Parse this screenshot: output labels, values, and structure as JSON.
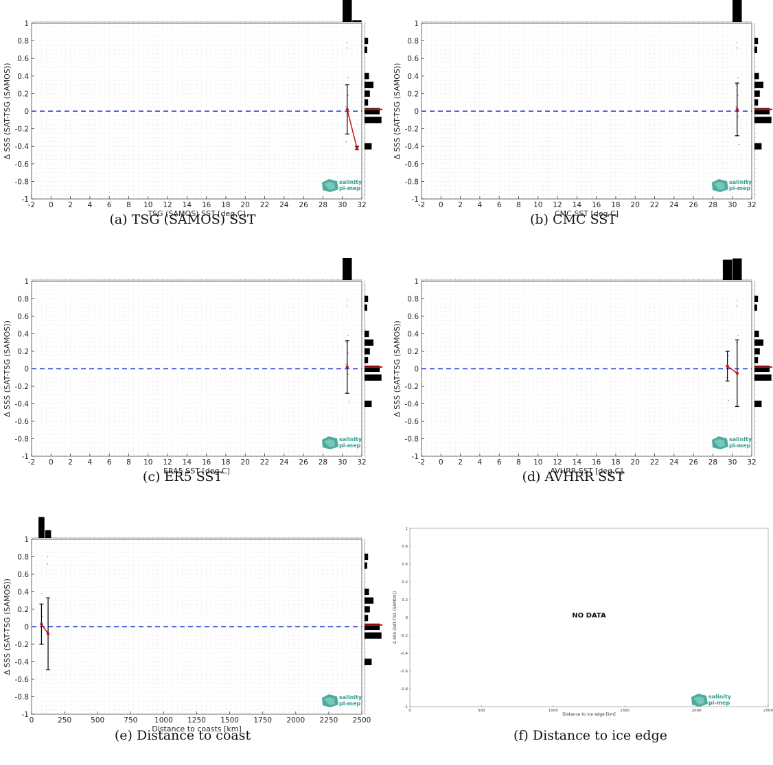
{
  "colors": {
    "zero_line": "#2233cc",
    "mean_line": "#cc1111",
    "bars": "#000000",
    "errorbar": "#000000",
    "logo": "#2e9c8c",
    "median_mark": "#cc1111"
  },
  "logo": {
    "line1": "salinity",
    "line2": "pi-mep",
    "icon": "salinity-logo-icon"
  },
  "chart_data": [
    {
      "id": "a",
      "type": "scatter",
      "caption": "(a) TSG (SAMOS) SST",
      "xlabel": "TSG (SAMOS) SST [deg C]",
      "ylabel": "Δ SSS (SAT-TSG (SAMOS))",
      "xlim": [
        -2,
        32
      ],
      "ylim": [
        -1,
        1
      ],
      "xticks": [
        -2,
        0,
        2,
        4,
        6,
        8,
        10,
        12,
        14,
        16,
        18,
        20,
        22,
        24,
        26,
        28,
        30,
        32
      ],
      "yticks": [
        -1,
        -0.8,
        -0.6,
        -0.4,
        -0.2,
        0,
        0.2,
        0.4,
        0.6,
        0.8,
        1
      ],
      "zero_line": 0,
      "mean_points": [
        {
          "x": 30.5,
          "y": 0.02,
          "err": 0.28
        },
        {
          "x": 31.5,
          "y": -0.42,
          "err": 0.02
        }
      ],
      "top_hist": [
        {
          "x": 30.5,
          "h": 1.0
        },
        {
          "x": 31.5,
          "h": 0.08
        }
      ],
      "right_hist": [
        {
          "y": 0.8,
          "w": 0.2
        },
        {
          "y": 0.7,
          "w": 0.15
        },
        {
          "y": 0.4,
          "w": 0.25
        },
        {
          "y": 0.3,
          "w": 0.5
        },
        {
          "y": 0.2,
          "w": 0.3
        },
        {
          "y": 0.1,
          "w": 0.2
        },
        {
          "y": 0.0,
          "w": 0.85
        },
        {
          "y": -0.1,
          "w": 0.95
        },
        {
          "y": -0.4,
          "w": 0.4
        }
      ],
      "median": 0.02,
      "scatter": [
        {
          "x": 30.5,
          "y": 0.78
        },
        {
          "x": 30.5,
          "y": 0.72
        },
        {
          "x": 30.6,
          "y": 0.38
        },
        {
          "x": 30.4,
          "y": 0.3
        },
        {
          "x": 30.6,
          "y": 0.18
        },
        {
          "x": 30.4,
          "y": 0.05
        },
        {
          "x": 30.6,
          "y": -0.06
        },
        {
          "x": 30.5,
          "y": -0.12
        },
        {
          "x": 30.4,
          "y": -0.35
        }
      ]
    },
    {
      "id": "b",
      "type": "scatter",
      "caption": "(b) CMC SST",
      "xlabel": "CMC SST [deg C]",
      "ylabel": "Δ SSS (SAT-TSG (SAMOS))",
      "xlim": [
        -2,
        32
      ],
      "ylim": [
        -1,
        1
      ],
      "xticks": [
        -2,
        0,
        2,
        4,
        6,
        8,
        10,
        12,
        14,
        16,
        18,
        20,
        22,
        24,
        26,
        28,
        30,
        32
      ],
      "yticks": [
        -1,
        -0.8,
        -0.6,
        -0.4,
        -0.2,
        0,
        0.2,
        0.4,
        0.6,
        0.8,
        1
      ],
      "zero_line": 0,
      "mean_points": [
        {
          "x": 30.5,
          "y": 0.02,
          "err": 0.3
        }
      ],
      "top_hist": [
        {
          "x": 30.5,
          "h": 1.0
        }
      ],
      "right_hist": [
        {
          "y": 0.8,
          "w": 0.2
        },
        {
          "y": 0.7,
          "w": 0.15
        },
        {
          "y": 0.4,
          "w": 0.25
        },
        {
          "y": 0.3,
          "w": 0.5
        },
        {
          "y": 0.2,
          "w": 0.3
        },
        {
          "y": 0.1,
          "w": 0.2
        },
        {
          "y": 0.0,
          "w": 0.85
        },
        {
          "y": -0.1,
          "w": 0.95
        },
        {
          "y": -0.4,
          "w": 0.4
        }
      ],
      "median": 0.02,
      "scatter": [
        {
          "x": 30.5,
          "y": 0.78
        },
        {
          "x": 30.5,
          "y": 0.72
        },
        {
          "x": 30.6,
          "y": 0.38
        },
        {
          "x": 30.4,
          "y": 0.3
        },
        {
          "x": 30.6,
          "y": 0.18
        },
        {
          "x": 30.4,
          "y": 0.05
        },
        {
          "x": 30.6,
          "y": -0.06
        },
        {
          "x": 30.7,
          "y": -0.38
        }
      ]
    },
    {
      "id": "c",
      "type": "scatter",
      "caption": "(c) ER5 SST",
      "xlabel": "ERA5 SST [deg C]",
      "ylabel": "Δ SSS (SAT-TSG (SAMOS))",
      "xlim": [
        -2,
        32
      ],
      "ylim": [
        -1,
        1
      ],
      "xticks": [
        -2,
        0,
        2,
        4,
        6,
        8,
        10,
        12,
        14,
        16,
        18,
        20,
        22,
        24,
        26,
        28,
        30,
        32
      ],
      "yticks": [
        -1,
        -0.8,
        -0.6,
        -0.4,
        -0.2,
        0,
        0.2,
        0.4,
        0.6,
        0.8,
        1
      ],
      "zero_line": 0,
      "mean_points": [
        {
          "x": 30.5,
          "y": 0.02,
          "err": 0.3
        }
      ],
      "top_hist": [
        {
          "x": 30.5,
          "h": 1.0
        }
      ],
      "right_hist": [
        {
          "y": 0.8,
          "w": 0.2
        },
        {
          "y": 0.7,
          "w": 0.15
        },
        {
          "y": 0.4,
          "w": 0.25
        },
        {
          "y": 0.3,
          "w": 0.5
        },
        {
          "y": 0.2,
          "w": 0.3
        },
        {
          "y": 0.1,
          "w": 0.2
        },
        {
          "y": 0.0,
          "w": 0.85
        },
        {
          "y": -0.1,
          "w": 0.95
        },
        {
          "y": -0.4,
          "w": 0.4
        }
      ],
      "median": 0.02,
      "scatter": [
        {
          "x": 30.5,
          "y": 0.78
        },
        {
          "x": 30.5,
          "y": 0.72
        },
        {
          "x": 30.6,
          "y": 0.38
        },
        {
          "x": 30.4,
          "y": 0.3
        },
        {
          "x": 30.6,
          "y": 0.18
        },
        {
          "x": 30.4,
          "y": 0.05
        },
        {
          "x": 30.6,
          "y": -0.06
        },
        {
          "x": 30.7,
          "y": -0.38
        }
      ]
    },
    {
      "id": "d",
      "type": "scatter",
      "caption": "(d) AVHRR SST",
      "xlabel": "AVHRR SST [deg C]",
      "ylabel": "Δ SSS (SAT-TSG (SAMOS))",
      "xlim": [
        -2,
        32
      ],
      "ylim": [
        -1,
        1
      ],
      "xticks": [
        -2,
        0,
        2,
        4,
        6,
        8,
        10,
        12,
        14,
        16,
        18,
        20,
        22,
        24,
        26,
        28,
        30,
        32
      ],
      "yticks": [
        -1,
        -0.8,
        -0.6,
        -0.4,
        -0.2,
        0,
        0.2,
        0.4,
        0.6,
        0.8,
        1
      ],
      "zero_line": 0,
      "mean_points": [
        {
          "x": 29.5,
          "y": 0.03,
          "err": 0.17
        },
        {
          "x": 30.5,
          "y": -0.05,
          "err": 0.38
        }
      ],
      "top_hist": [
        {
          "x": 29.5,
          "h": 0.92
        },
        {
          "x": 30.5,
          "h": 0.98
        }
      ],
      "right_hist": [
        {
          "y": 0.8,
          "w": 0.2
        },
        {
          "y": 0.7,
          "w": 0.15
        },
        {
          "y": 0.4,
          "w": 0.25
        },
        {
          "y": 0.3,
          "w": 0.5
        },
        {
          "y": 0.2,
          "w": 0.3
        },
        {
          "y": 0.1,
          "w": 0.2
        },
        {
          "y": 0.0,
          "w": 0.85
        },
        {
          "y": -0.1,
          "w": 0.95
        },
        {
          "y": -0.4,
          "w": 0.4
        }
      ],
      "median": 0.02,
      "scatter": [
        {
          "x": 30.5,
          "y": 0.78
        },
        {
          "x": 30.5,
          "y": 0.72
        },
        {
          "x": 30.6,
          "y": 0.38
        },
        {
          "x": 30.4,
          "y": 0.3
        },
        {
          "x": 29.6,
          "y": 0.15
        },
        {
          "x": 29.4,
          "y": -0.1
        },
        {
          "x": 30.6,
          "y": -0.06
        },
        {
          "x": 29.6,
          "y": -0.36
        }
      ]
    },
    {
      "id": "e",
      "type": "scatter",
      "caption": "(e) Distance to coast",
      "xlabel": "Distance to coasts [km]",
      "ylabel": "Δ SSS (SAT-TSG (SAMOS))",
      "xlim": [
        0,
        2500
      ],
      "ylim": [
        -1,
        1
      ],
      "xticks": [
        0,
        250,
        500,
        750,
        1000,
        1250,
        1500,
        1750,
        2000,
        2250,
        2500
      ],
      "yticks": [
        -1,
        -0.8,
        -0.6,
        -0.4,
        -0.2,
        0,
        0.2,
        0.4,
        0.6,
        0.8,
        1
      ],
      "zero_line": 0,
      "mean_points": [
        {
          "x": 75,
          "y": 0.03,
          "err": 0.23
        },
        {
          "x": 125,
          "y": -0.08,
          "err": 0.41
        }
      ],
      "top_hist": [
        {
          "x": 75,
          "h": 0.95
        },
        {
          "x": 125,
          "h": 0.35
        }
      ],
      "right_hist": [
        {
          "y": 0.8,
          "w": 0.2
        },
        {
          "y": 0.7,
          "w": 0.15
        },
        {
          "y": 0.4,
          "w": 0.25
        },
        {
          "y": 0.3,
          "w": 0.5
        },
        {
          "y": 0.2,
          "w": 0.3
        },
        {
          "y": 0.1,
          "w": 0.2
        },
        {
          "y": 0.0,
          "w": 0.85
        },
        {
          "y": -0.1,
          "w": 0.95
        },
        {
          "y": -0.4,
          "w": 0.4
        }
      ],
      "median": 0.02,
      "scatter": [
        {
          "x": 78,
          "y": 0.38
        },
        {
          "x": 120,
          "y": 0.8
        },
        {
          "x": 120,
          "y": 0.72
        },
        {
          "x": 80,
          "y": 0.12
        },
        {
          "x": 120,
          "y": -0.06
        },
        {
          "x": 125,
          "y": -0.36
        }
      ]
    },
    {
      "id": "f",
      "type": "scatter",
      "caption": "(f) Distance to ice edge",
      "xlabel": "Distance to ice edge [km]",
      "ylabel": "Δ SSS (SAT-TSG (SAMOS))",
      "xlim": [
        0,
        2500
      ],
      "ylim": [
        -1,
        1
      ],
      "xticks": [
        0,
        500,
        1000,
        1500,
        2000,
        2500
      ],
      "yticks": [
        -1,
        -0.8,
        -0.6,
        -0.4,
        -0.2,
        0,
        0.2,
        0.4,
        0.6,
        0.8,
        1
      ],
      "nodata": "NO DATA"
    }
  ]
}
